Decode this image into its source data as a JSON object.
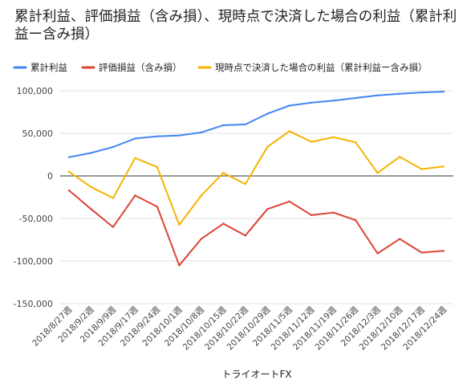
{
  "chart_data": {
    "type": "line",
    "title": "累計利益、評価損益（含み損）、現時点で決済した場合の利益（累計利益ー含み損）",
    "xlabel": "トライオートFX",
    "ylabel": "",
    "ylim": [
      -150000,
      100000
    ],
    "yticks": [
      100000,
      50000,
      0,
      -50000,
      -100000,
      -150000
    ],
    "ytick_labels": [
      "100,000",
      "50,000",
      "0",
      "-50,000",
      "-100,000",
      "-150,000"
    ],
    "grid": true,
    "legend_position": "top-left",
    "categories": [
      "2018/8/27週",
      "2018/9/2週",
      "2018/9/9週",
      "2018/9/17週",
      "2018/9/24週",
      "2018/10/1週",
      "2018/10/8週",
      "2018/10/15週",
      "2018/10/22週",
      "2018/10/29週",
      "2018/11/5週",
      "2018/11/12週",
      "2018/11/19週",
      "2018/11/26週",
      "2018/12/3週",
      "2018/12/10週",
      "2018/12/17週",
      "2018/12/24週"
    ],
    "series": [
      {
        "name": "累計利益",
        "color": "#4285f4",
        "values": [
          22000,
          27000,
          34000,
          44000,
          46500,
          47500,
          51000,
          59500,
          60500,
          73000,
          82500,
          86000,
          88500,
          91500,
          94500,
          96500,
          98000,
          99000
        ]
      },
      {
        "name": "評価損益（含み損）",
        "color": "#db4437",
        "values": [
          -17000,
          -39000,
          -60000,
          -23000,
          -36000,
          -105000,
          -74000,
          -56000,
          -70000,
          -39000,
          -30000,
          -46000,
          -43000,
          -52000,
          -91000,
          -74000,
          -90000,
          -88000
        ]
      },
      {
        "name": "現時点で決済した場合の利益（累計利益ー含み損）",
        "color": "#f4b400",
        "values": [
          5000,
          -13000,
          -26000,
          21000,
          10500,
          -57500,
          -23000,
          3500,
          -9500,
          34000,
          52500,
          40000,
          45500,
          39500,
          3500,
          22500,
          8000,
          11000
        ]
      }
    ]
  }
}
